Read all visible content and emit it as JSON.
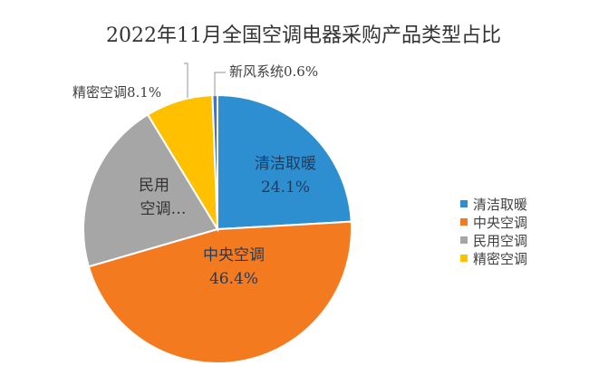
{
  "chart_data": {
    "type": "pie",
    "title": "2022年11月全国空调电器采购产品类型占比",
    "slices": [
      {
        "name": "清洁取暖",
        "value": 24.1,
        "label": "清洁取暖",
        "pct": "24.1%",
        "color": "#2E8FD0"
      },
      {
        "name": "中央空调",
        "value": 46.4,
        "label": "中央空调",
        "pct": "46.4%",
        "color": "#F47A20"
      },
      {
        "name": "民用空调",
        "value": 20.8,
        "label_line1": "民用",
        "label_line2": "空调…",
        "color": "#A6A6A6"
      },
      {
        "name": "精密空调",
        "value": 8.1,
        "label": "精密空调8.1%",
        "color": "#FFC000"
      },
      {
        "name": "新风系统",
        "value": 0.6,
        "label": "新风系统0.6%",
        "color": "#4472C4"
      }
    ],
    "legend": {
      "position": "right",
      "entries": [
        "清洁取暖",
        "中央空调",
        "民用空调",
        "精密空调"
      ]
    }
  }
}
